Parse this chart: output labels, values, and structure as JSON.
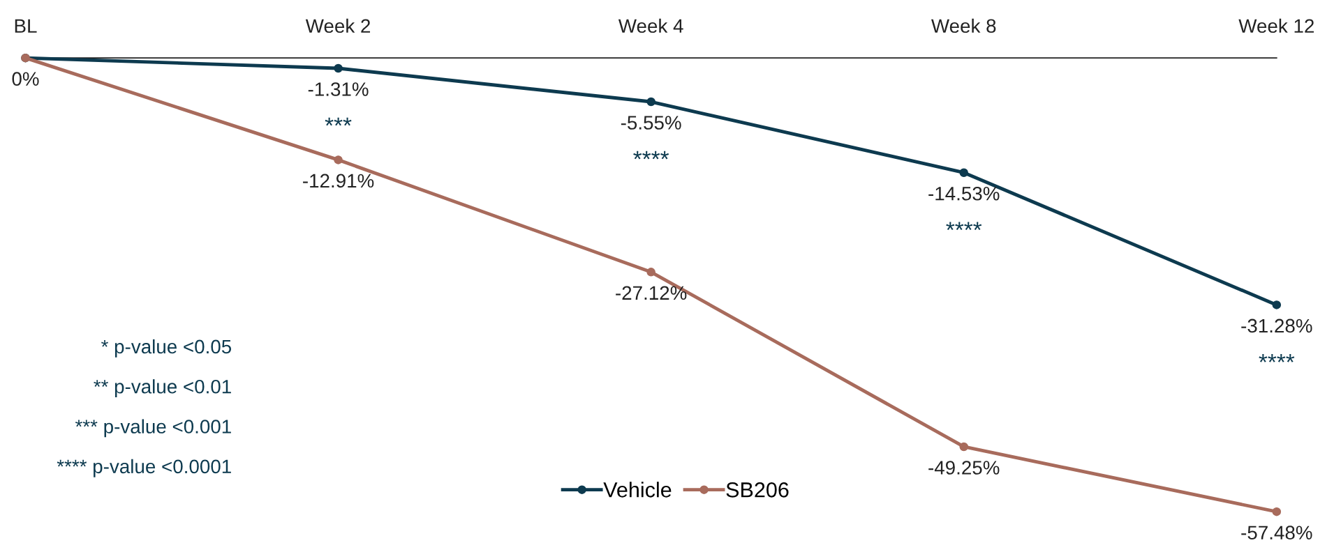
{
  "chart_data": {
    "type": "line",
    "categories": [
      "BL",
      "Week 2",
      "Week 4",
      "Week 8",
      "Week 12"
    ],
    "series": [
      {
        "name": "Vehicle",
        "color": "#0d3a4f",
        "values": [
          0,
          -1.31,
          -5.55,
          -14.53,
          -31.28
        ],
        "value_labels": [
          "0%",
          "-1.31%",
          "-5.55%",
          "-14.53%",
          "-31.28%"
        ]
      },
      {
        "name": "SB206",
        "color": "#a86b5c",
        "values": [
          0,
          -12.91,
          -27.12,
          -49.25,
          -57.48
        ],
        "value_labels": [
          null,
          "-12.91%",
          "-27.12%",
          "-49.25%",
          "-57.48%"
        ]
      }
    ],
    "tick_labels": "x",
    "marker": "circle",
    "line_style": "solid",
    "legend": "bottom",
    "grid": false,
    "annotations": [
      {
        "text": "***",
        "x": "Week 2",
        "y": -1.31
      },
      {
        "text": "****",
        "x": "Week 4",
        "y": -5.55
      },
      {
        "text": "****",
        "x": "Week 8",
        "y": -14.53
      },
      {
        "text": "****",
        "x": "Week 12",
        "y": -31.28
      },
      "* p-value <0.05",
      "** p-value <0.01",
      "*** p-value <0.001",
      "**** p-value <0.0001"
    ]
  }
}
